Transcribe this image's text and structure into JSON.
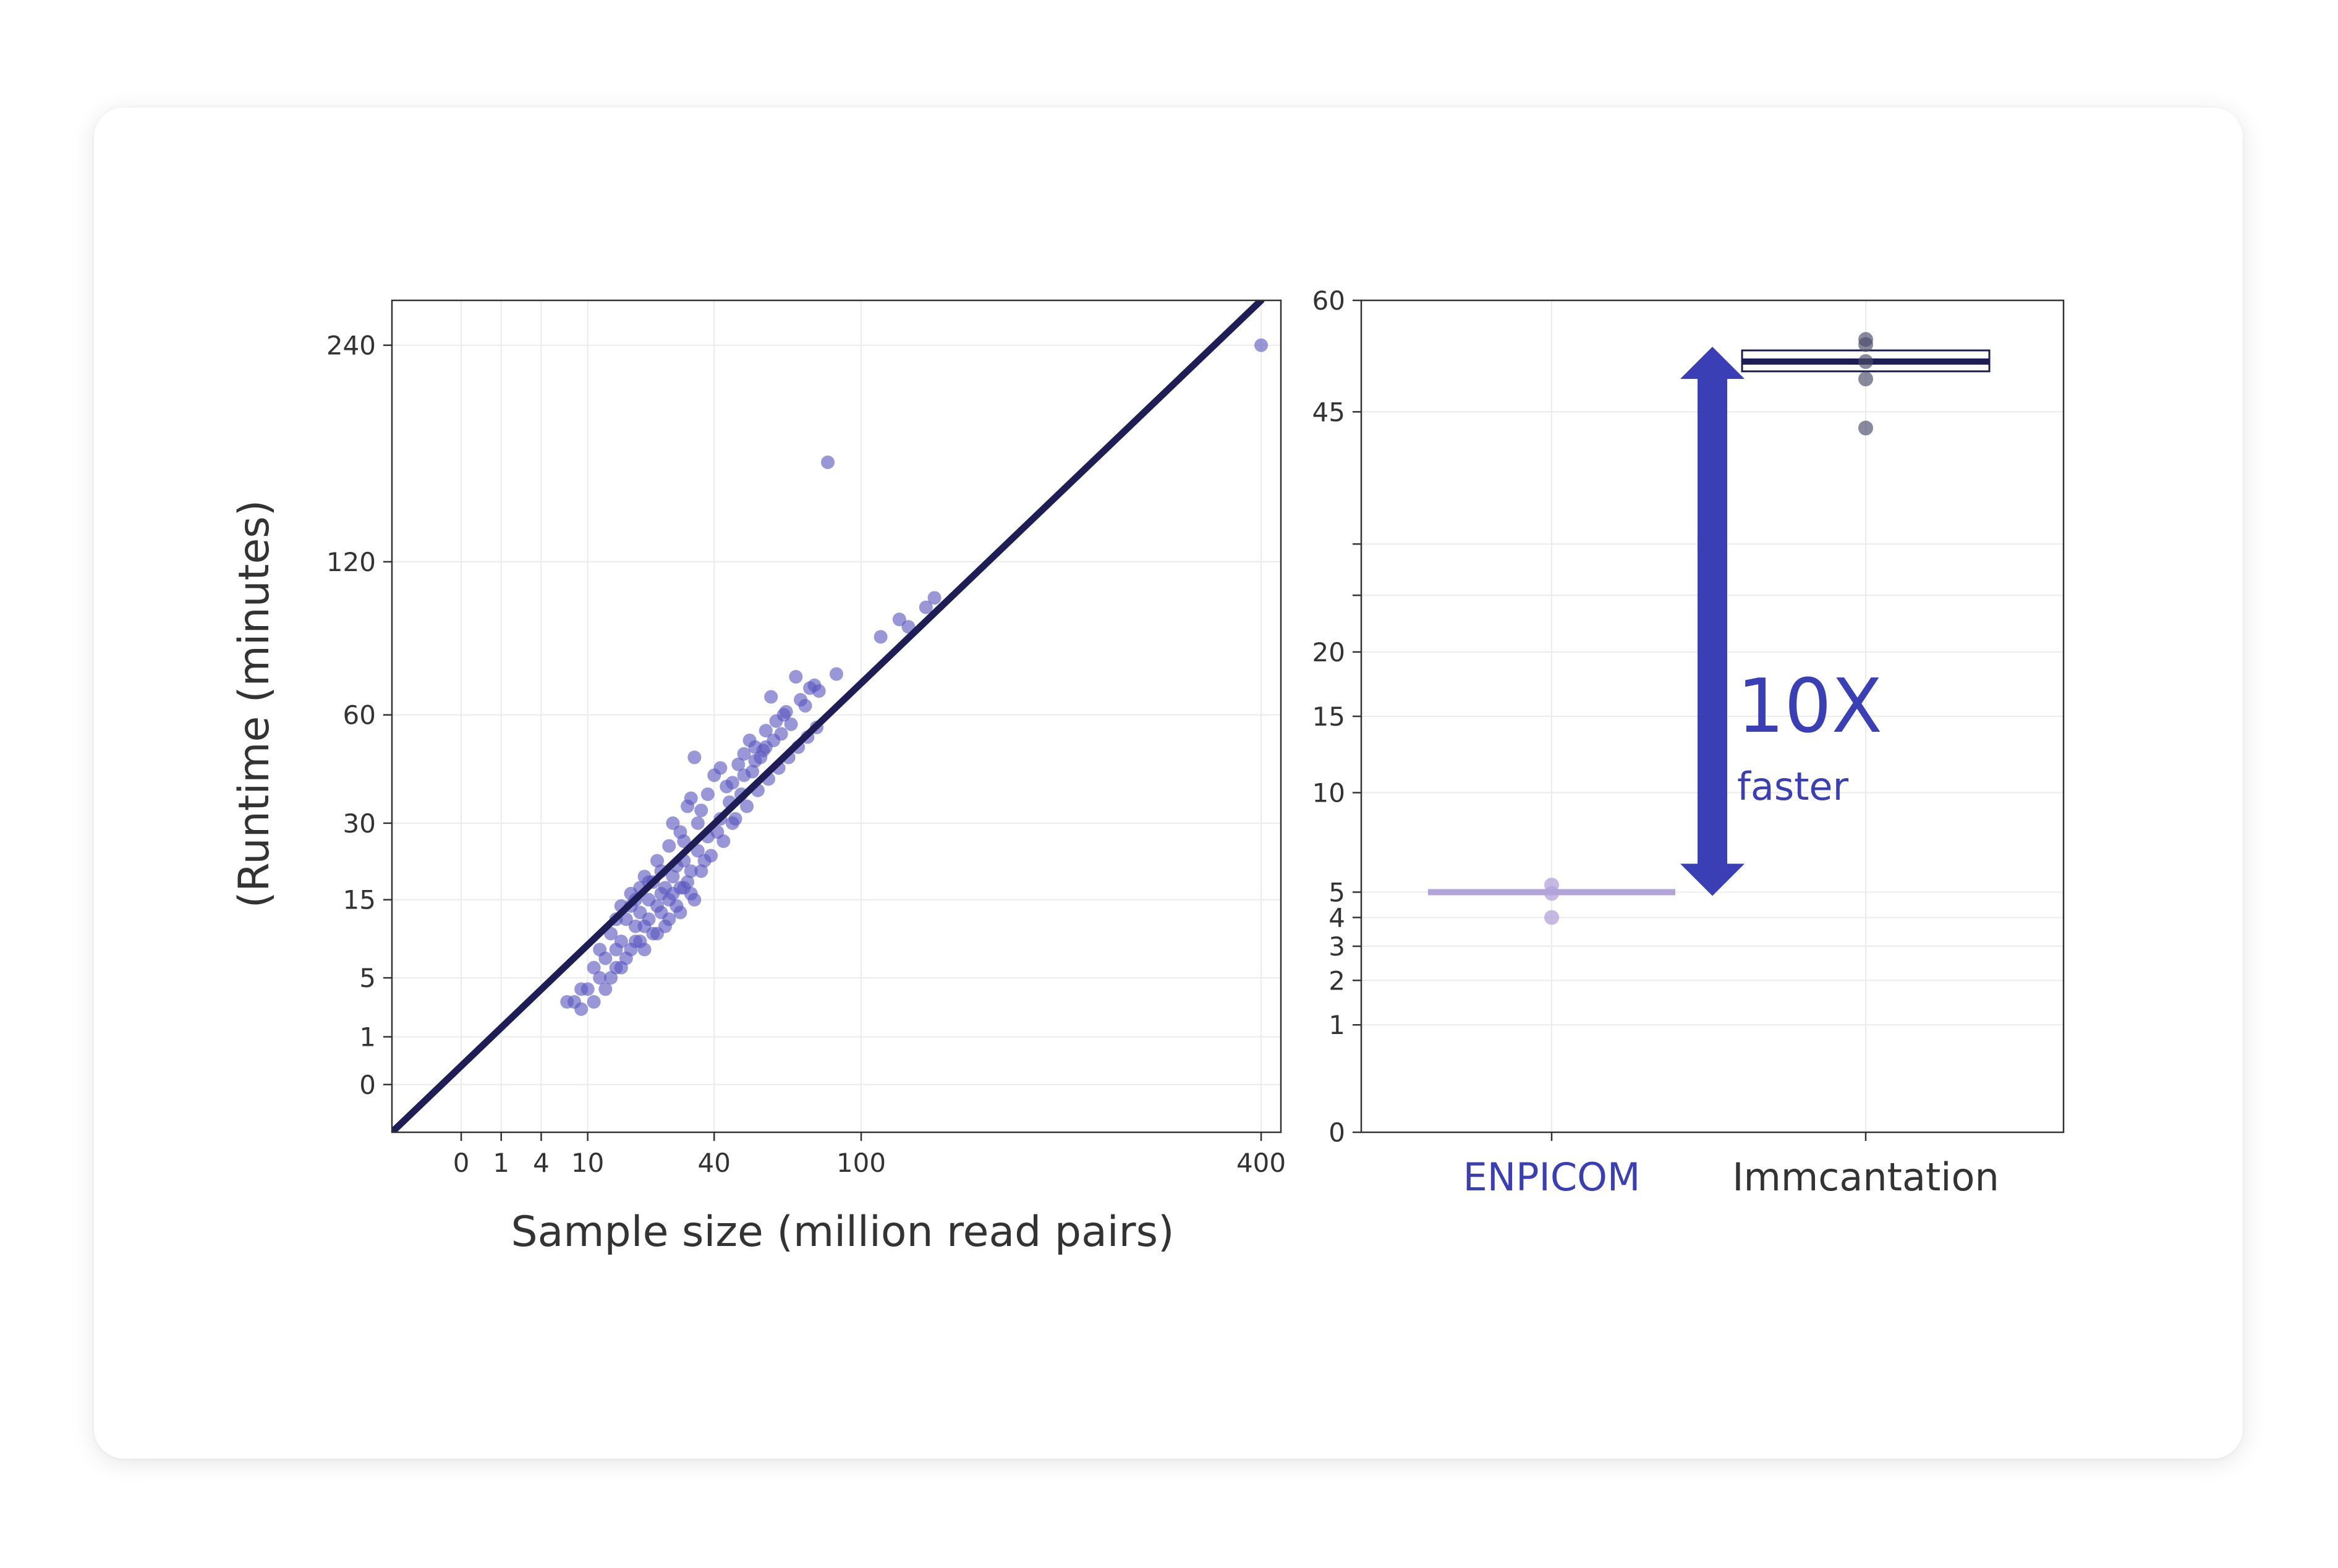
{
  "colors": {
    "scatter_point": "#5a57c0",
    "fit_line": "#1f1d55",
    "enpicom_label": "#3b3fb5",
    "enpicom_bar": "#b3a3db",
    "immcantation_box": "#1f1d55",
    "immcantation_point": "#4a4a6a",
    "arrow": "#3b3fb5",
    "grid": "#ebebeb",
    "axis_text": "#333333"
  },
  "chart_data": [
    {
      "type": "scatter",
      "xlabel": "Sample size (million read pairs)",
      "ylabel": "(Runtime (minutes)",
      "x_scale": "sqrt",
      "y_scale": "sqrt",
      "x_ticks": [
        0,
        1,
        4,
        10,
        40,
        100,
        400
      ],
      "y_ticks": [
        0,
        1,
        5,
        15,
        30,
        60,
        120,
        240
      ],
      "xlim": [
        -3,
        420
      ],
      "ylim": [
        -1,
        270
      ],
      "grid": true,
      "fit_line": {
        "x": [
          -3,
          400
        ],
        "y": [
          -1,
          270
        ]
      },
      "points": [
        [
          400,
          240
        ],
        [
          84,
          170
        ],
        [
          7,
          3
        ],
        [
          8,
          3
        ],
        [
          9,
          2.5
        ],
        [
          10,
          4
        ],
        [
          12,
          5
        ],
        [
          13,
          7
        ],
        [
          14,
          10
        ],
        [
          15,
          6
        ],
        [
          16,
          9
        ],
        [
          17,
          12
        ],
        [
          18,
          14
        ],
        [
          19,
          11
        ],
        [
          20,
          13
        ],
        [
          20,
          17
        ],
        [
          21,
          19
        ],
        [
          22,
          15
        ],
        [
          23,
          18
        ],
        [
          24,
          22
        ],
        [
          25,
          20
        ],
        [
          26,
          17
        ],
        [
          27,
          25
        ],
        [
          28,
          30
        ],
        [
          29,
          21
        ],
        [
          30,
          28
        ],
        [
          31,
          26
        ],
        [
          32,
          34
        ],
        [
          33,
          36
        ],
        [
          34,
          47
        ],
        [
          35,
          30
        ],
        [
          36,
          33
        ],
        [
          38,
          37
        ],
        [
          40,
          42
        ],
        [
          42,
          44
        ],
        [
          44,
          39
        ],
        [
          46,
          40
        ],
        [
          48,
          45
        ],
        [
          50,
          48
        ],
        [
          52,
          52
        ],
        [
          54,
          50
        ],
        [
          56,
          47
        ],
        [
          58,
          55
        ],
        [
          60,
          66
        ],
        [
          62,
          58
        ],
        [
          64,
          54
        ],
        [
          66,
          61
        ],
        [
          68,
          57
        ],
        [
          70,
          73
        ],
        [
          72,
          65
        ],
        [
          74,
          63
        ],
        [
          76,
          69
        ],
        [
          78,
          70
        ],
        [
          80,
          68
        ],
        [
          88,
          74
        ],
        [
          110,
          88
        ],
        [
          120,
          95
        ],
        [
          125,
          92
        ],
        [
          135,
          100
        ],
        [
          140,
          104
        ],
        [
          11,
          6
        ],
        [
          13,
          4
        ],
        [
          15,
          8
        ],
        [
          17,
          7
        ],
        [
          19,
          9
        ],
        [
          21,
          11
        ],
        [
          23,
          10
        ],
        [
          25,
          13
        ],
        [
          27,
          15
        ],
        [
          29,
          14
        ],
        [
          31,
          17
        ],
        [
          33,
          16
        ],
        [
          36,
          20
        ],
        [
          39,
          23
        ],
        [
          43,
          26
        ],
        [
          47,
          31
        ],
        [
          51,
          34
        ],
        [
          55,
          38
        ],
        [
          59,
          41
        ],
        [
          63,
          44
        ],
        [
          67,
          47
        ],
        [
          71,
          50
        ],
        [
          75,
          53
        ],
        [
          79,
          56
        ],
        [
          16,
          14
        ],
        [
          18,
          16
        ],
        [
          20,
          9
        ],
        [
          22,
          12
        ],
        [
          24,
          14
        ],
        [
          26,
          11
        ],
        [
          28,
          16
        ],
        [
          30,
          13
        ],
        [
          32,
          18
        ],
        [
          34,
          15
        ],
        [
          37,
          22
        ],
        [
          41,
          28
        ],
        [
          45,
          35
        ],
        [
          49,
          37
        ],
        [
          53,
          43
        ],
        [
          57,
          49
        ],
        [
          61,
          52
        ],
        [
          65,
          60
        ],
        [
          9,
          4
        ],
        [
          11,
          3
        ],
        [
          12,
          8
        ],
        [
          14,
          5
        ],
        [
          15,
          12
        ],
        [
          16,
          6
        ],
        [
          18,
          8
        ],
        [
          19,
          15
        ],
        [
          21,
          8
        ],
        [
          22,
          18
        ],
        [
          24,
          10
        ],
        [
          25,
          16
        ],
        [
          27,
          12
        ],
        [
          28,
          19
        ],
        [
          30,
          17
        ],
        [
          31,
          22
        ],
        [
          33,
          20
        ],
        [
          35,
          24
        ],
        [
          38,
          27
        ],
        [
          42,
          31
        ],
        [
          46,
          30
        ],
        [
          50,
          42
        ],
        [
          54,
          46
        ],
        [
          58,
          50
        ]
      ]
    },
    {
      "type": "box",
      "categories": [
        "ENPICOM",
        "Immcantation"
      ],
      "y_scale": "sqrt",
      "y_ticks": [
        0,
        1,
        2,
        3,
        4,
        5,
        10,
        15,
        20,
        45,
        60
      ],
      "extra_minor_ticks": [
        25,
        30
      ],
      "ylim": [
        0,
        60
      ],
      "grid": true,
      "enpicom": {
        "median": 5.0,
        "q1": 4.95,
        "q3": 5.05,
        "points": [
          5.3,
          4.95,
          4.0
        ]
      },
      "immcantation": {
        "median": 51.5,
        "q1": 50.2,
        "q3": 53.0,
        "points": [
          54.5,
          53.8,
          51.5,
          49.2,
          43.0
        ]
      },
      "annotation": {
        "text": "10X",
        "subtext": "faster"
      }
    }
  ]
}
